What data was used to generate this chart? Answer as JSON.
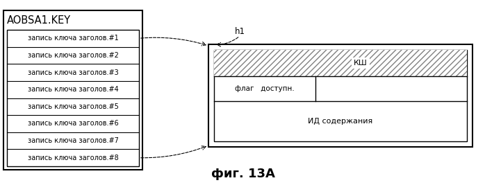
{
  "title": "фиг. 13А",
  "left_box_title": "AOBSA1.KEY",
  "left_box_rows": [
    "запись ключа заголов.#1",
    "запись ключа заголов.#2",
    "запись ключа заголов.#3",
    "запись ключа заголов.#4",
    "запись ключа заголов.#5",
    "запись ключа заголов.#6",
    "запись ключа заголов.#7",
    "запись ключа заголов.#8"
  ],
  "h1_label": "h1",
  "ksh_label": "КШ",
  "flag_label": "флаг   доступн.",
  "id_label": "ИД содержания",
  "bg_color": "#ffffff",
  "font_size": 7.5,
  "title_font_size": 13
}
